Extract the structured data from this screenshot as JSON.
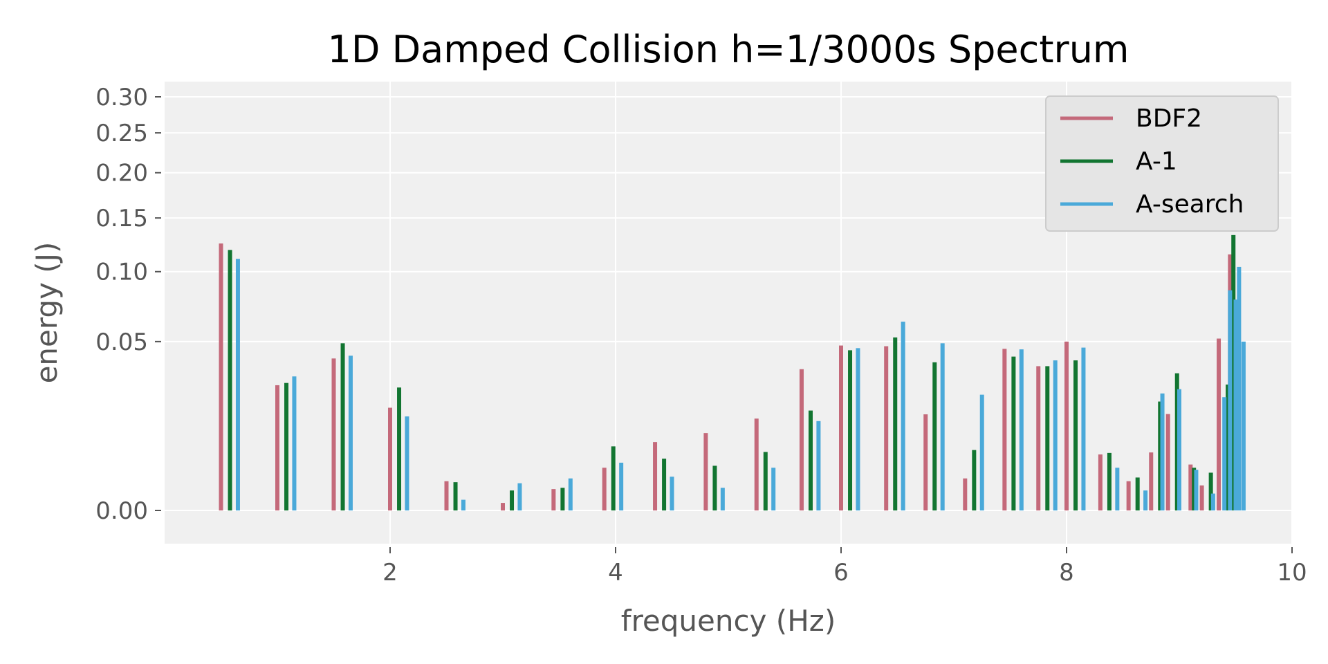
{
  "chart_data": {
    "type": "bar",
    "title": "1D Damped Collision h=1/3000s Spectrum",
    "xlabel": "frequency (Hz)",
    "ylabel": "energy (J)",
    "y_scale": "sqrt",
    "xlim": [
      0,
      10
    ],
    "ylim": [
      0,
      0.32
    ],
    "x_ticks": [
      2,
      4,
      6,
      8,
      10
    ],
    "x_tick_labels": [
      "2",
      "4",
      "6",
      "8",
      "10"
    ],
    "y_ticks": [
      0.0,
      0.05,
      0.1,
      0.15,
      0.2,
      0.25,
      0.3
    ],
    "y_tick_labels": [
      "0.00",
      "0.05",
      "0.10",
      "0.15",
      "0.20",
      "0.25",
      "0.30"
    ],
    "grid": true,
    "legend_position": "top-right",
    "series": [
      {
        "name": "BDF2",
        "color": "#c4697a",
        "x": [
          0.5,
          1.0,
          1.5,
          2.0,
          2.5,
          3.0,
          3.45,
          3.9,
          4.35,
          4.8,
          5.25,
          5.65,
          6.0,
          6.4,
          6.75,
          7.1,
          7.45,
          7.75,
          8.0,
          8.3,
          8.55,
          8.75,
          8.9,
          9.1,
          9.2,
          9.35,
          9.45
        ],
        "values": [
          0.125,
          0.0275,
          0.0405,
          0.0185,
          0.0015,
          0.0001,
          0.0008,
          0.0032,
          0.0082,
          0.0105,
          0.0148,
          0.035,
          0.0477,
          0.0473,
          0.0162,
          0.0018,
          0.0458,
          0.0365,
          0.05,
          0.0055,
          0.0015,
          0.0059,
          0.0163,
          0.0037,
          0.0011,
          0.0518,
          0.115
        ]
      },
      {
        "name": "A-1",
        "color": "#127531",
        "x": [
          0.58,
          1.08,
          1.58,
          2.08,
          2.58,
          3.08,
          3.53,
          3.98,
          4.43,
          4.88,
          5.33,
          5.73,
          6.08,
          6.48,
          6.83,
          7.18,
          7.53,
          7.83,
          8.08,
          8.38,
          8.63,
          8.83,
          8.98,
          9.13,
          9.28,
          9.43,
          9.48
        ],
        "values": [
          0.119,
          0.0285,
          0.049,
          0.0265,
          0.0014,
          0.0007,
          0.0009,
          0.0072,
          0.0047,
          0.0035,
          0.006,
          0.0175,
          0.045,
          0.0525,
          0.0385,
          0.0064,
          0.0415,
          0.0365,
          0.0395,
          0.0058,
          0.0019,
          0.0208,
          0.033,
          0.0032,
          0.0025,
          0.0278,
          0.133
        ]
      },
      {
        "name": "A-search",
        "color": "#4aa9d9",
        "x": [
          0.65,
          1.15,
          1.65,
          2.15,
          2.65,
          3.15,
          3.6,
          4.05,
          4.5,
          4.95,
          5.4,
          5.8,
          6.15,
          6.55,
          6.9,
          7.25,
          7.6,
          7.9,
          8.15,
          8.45,
          8.7,
          8.85,
          9.0,
          9.15,
          9.3,
          9.4,
          9.45,
          9.5,
          9.53,
          9.57
        ],
        "values": [
          0.111,
          0.0315,
          0.042,
          0.0155,
          0.0002,
          0.0013,
          0.0018,
          0.004,
          0.002,
          0.0009,
          0.0032,
          0.014,
          0.0462,
          0.0625,
          0.049,
          0.0235,
          0.0455,
          0.0395,
          0.0465,
          0.0032,
          0.0007,
          0.024,
          0.0258,
          0.0029,
          0.0005,
          0.0225,
          0.085,
          0.078,
          0.104,
          0.05
        ]
      }
    ]
  }
}
